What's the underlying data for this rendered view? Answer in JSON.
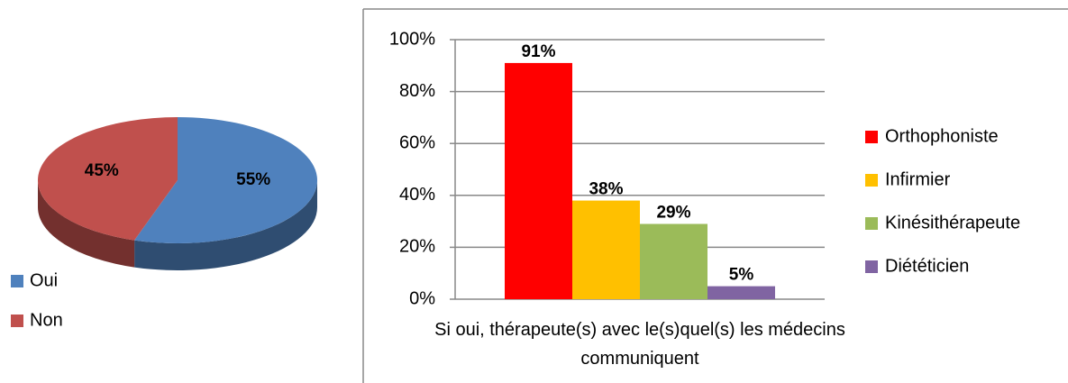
{
  "chart_data": [
    {
      "type": "pie",
      "categories": [
        "Oui",
        "Non"
      ],
      "values": [
        55,
        45
      ],
      "value_labels": [
        "55%",
        "45%"
      ],
      "colors": [
        "#4f81bd",
        "#c0504d"
      ],
      "legend": "bottom-left"
    },
    {
      "type": "bar",
      "categories": [
        "Si oui, thérapeute(s) avec le(s)quel(s) les médecins communiquent"
      ],
      "series": [
        {
          "name": "Orthophoniste",
          "color": "#ff0000",
          "values": [
            91
          ],
          "value_labels": [
            "91%"
          ]
        },
        {
          "name": "Infirmier",
          "color": "#ffc000",
          "values": [
            38
          ],
          "value_labels": [
            "38%"
          ]
        },
        {
          "name": "Kinésithérapeute",
          "color": "#9bbb59",
          "values": [
            29
          ],
          "value_labels": [
            "29%"
          ]
        },
        {
          "name": "Diététicien",
          "color": "#8064a2",
          "values": [
            5
          ],
          "value_labels": [
            "5%"
          ]
        }
      ],
      "ylim": [
        0,
        100
      ],
      "yticks": [
        {
          "value": 0,
          "label": "0%"
        },
        {
          "value": 20,
          "label": "20%"
        },
        {
          "value": 40,
          "label": "40%"
        },
        {
          "value": 60,
          "label": "60%"
        },
        {
          "value": 80,
          "label": "80%"
        },
        {
          "value": 100,
          "label": "100%"
        }
      ],
      "grid": true,
      "legend": "right"
    }
  ]
}
